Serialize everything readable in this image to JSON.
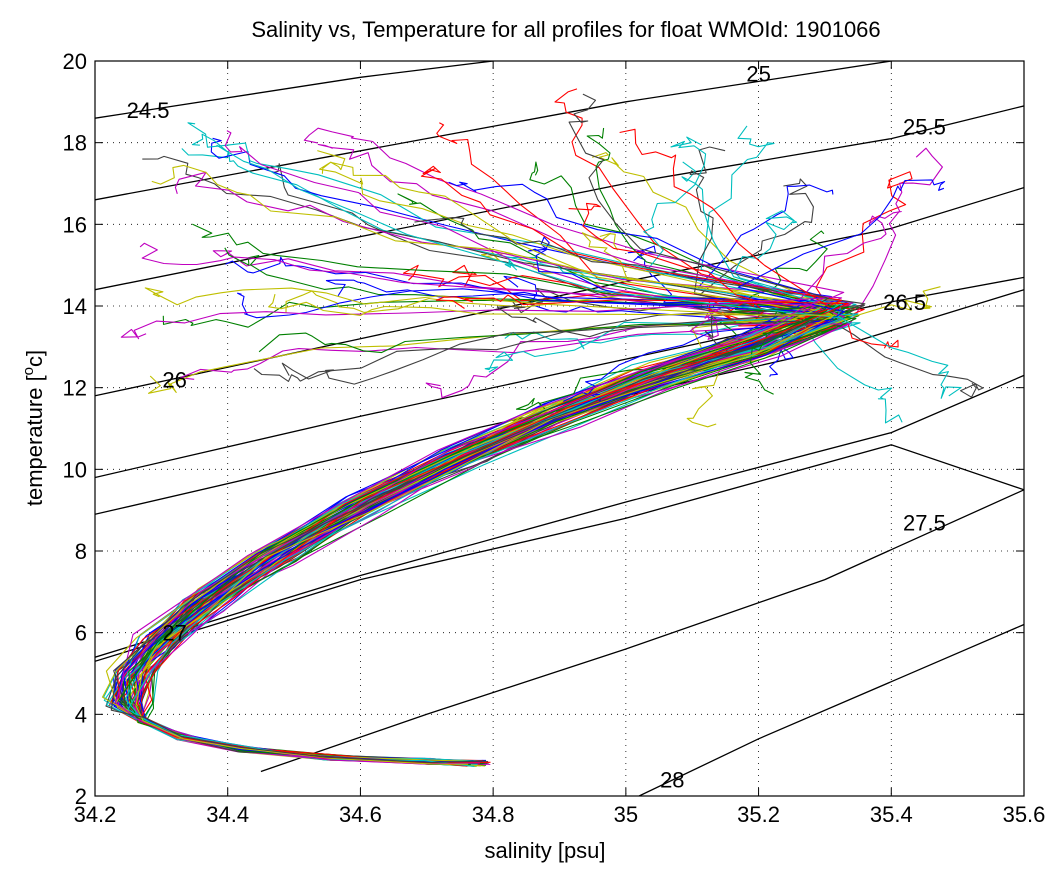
{
  "chart_data": {
    "type": "line",
    "title": "Salinity vs, Temperature for all profiles for float WMOId: 1901066",
    "xlabel": "salinity [psu]",
    "ylabel_prefix": "temperature [",
    "ylabel_sup": "o",
    "ylabel_suffix": "c]",
    "xlim": [
      34.2,
      35.6
    ],
    "ylim": [
      2,
      20
    ],
    "xticks": [
      34.2,
      34.4,
      34.6,
      34.8,
      35.0,
      35.2,
      35.4,
      35.6
    ],
    "xtick_labels": [
      "34.2",
      "34.4",
      "34.6",
      "34.8",
      "35",
      "35.2",
      "35.4",
      "35.6"
    ],
    "yticks": [
      2,
      4,
      6,
      8,
      10,
      12,
      14,
      16,
      18,
      20
    ],
    "ytick_labels": [
      "2",
      "4",
      "6",
      "8",
      "10",
      "12",
      "14",
      "16",
      "18",
      "20"
    ],
    "grid": true,
    "density_contours": [
      {
        "sigma": 24.5,
        "label": "24.5",
        "points": [
          [
            34.2,
            18.6
          ],
          [
            34.6,
            19.6
          ],
          [
            34.8,
            20.0
          ]
        ],
        "label_at": [
          34.28,
          18.8
        ]
      },
      {
        "sigma": 25.0,
        "label": "25",
        "points": [
          [
            34.2,
            16.6
          ],
          [
            34.6,
            17.8
          ],
          [
            35.0,
            19.0
          ],
          [
            35.4,
            20.0
          ]
        ],
        "label_at": [
          35.2,
          19.7
        ]
      },
      {
        "sigma": 25.5,
        "label": "25.5",
        "points": [
          [
            34.2,
            14.4
          ],
          [
            34.6,
            15.7
          ],
          [
            35.0,
            17.0
          ],
          [
            35.4,
            18.1
          ],
          [
            35.6,
            18.9
          ]
        ],
        "label_at": [
          35.45,
          18.4
        ]
      },
      {
        "sigma": 25.75,
        "label": "",
        "points": [
          [
            34.2,
            11.8
          ],
          [
            34.6,
            13.2
          ],
          [
            35.0,
            14.6
          ],
          [
            35.4,
            15.9
          ],
          [
            35.6,
            16.9
          ]
        ],
        "label_at": null
      },
      {
        "sigma": 26.0,
        "label": "26",
        "points": [
          [
            34.2,
            9.8
          ],
          [
            34.6,
            11.3
          ],
          [
            35.0,
            12.7
          ],
          [
            35.4,
            14.1
          ],
          [
            35.6,
            14.7
          ]
        ],
        "label_at": [
          34.32,
          12.2
        ]
      },
      {
        "sigma": 26.5,
        "label": "26.5",
        "points": [
          [
            34.2,
            8.9
          ],
          [
            34.6,
            10.4
          ],
          [
            35.0,
            11.8
          ],
          [
            35.3,
            12.9
          ],
          [
            35.6,
            14.4
          ]
        ],
        "label_at": [
          35.42,
          14.1
        ]
      },
      {
        "sigma": 26.75,
        "label": "",
        "points": [
          [
            34.2,
            5.4
          ],
          [
            34.4,
            6.4
          ],
          [
            34.6,
            7.4
          ],
          [
            35.0,
            9.2
          ],
          [
            35.4,
            10.9
          ],
          [
            35.6,
            12.3
          ]
        ],
        "label_at": null
      },
      {
        "sigma": 27.0,
        "label": "27",
        "points": [
          [
            34.2,
            5.3
          ],
          [
            34.6,
            7.3
          ],
          [
            35.0,
            8.8
          ],
          [
            35.4,
            10.6
          ],
          [
            35.6,
            9.5
          ]
        ],
        "label_at": [
          34.32,
          6.0
        ]
      },
      {
        "sigma": 27.5,
        "label": "27.5",
        "points": [
          [
            34.45,
            2.6
          ],
          [
            34.7,
            4.0
          ],
          [
            35.0,
            5.6
          ],
          [
            35.3,
            7.3
          ],
          [
            35.6,
            9.5
          ]
        ],
        "label_at": [
          35.45,
          8.7
        ]
      },
      {
        "sigma": 28.0,
        "label": "28",
        "points": [
          [
            35.02,
            2.0
          ],
          [
            35.2,
            3.4
          ],
          [
            35.4,
            4.8
          ],
          [
            35.6,
            6.2
          ]
        ],
        "label_at": [
          35.07,
          2.4
        ]
      }
    ],
    "series_colors": [
      "#0000ff",
      "#008000",
      "#ff0000",
      "#00bfbf",
      "#bf00bf",
      "#bfbf00",
      "#404040"
    ],
    "profile_count": 84,
    "profile_template": {
      "deep": [
        [
          34.79,
          2.8
        ],
        [
          34.7,
          2.85
        ],
        [
          34.55,
          2.95
        ],
        [
          34.42,
          3.15
        ],
        [
          34.33,
          3.45
        ],
        [
          34.27,
          3.85
        ]
      ],
      "mid": [
        [
          34.25,
          4.3
        ],
        [
          34.26,
          5.0
        ],
        [
          34.3,
          5.8
        ],
        [
          34.37,
          6.8
        ],
        [
          34.47,
          7.9
        ],
        [
          34.6,
          9.1
        ],
        [
          34.75,
          10.3
        ],
        [
          34.9,
          11.4
        ],
        [
          35.05,
          12.3
        ],
        [
          35.2,
          13.1
        ],
        [
          35.32,
          13.9
        ]
      ]
    }
  }
}
